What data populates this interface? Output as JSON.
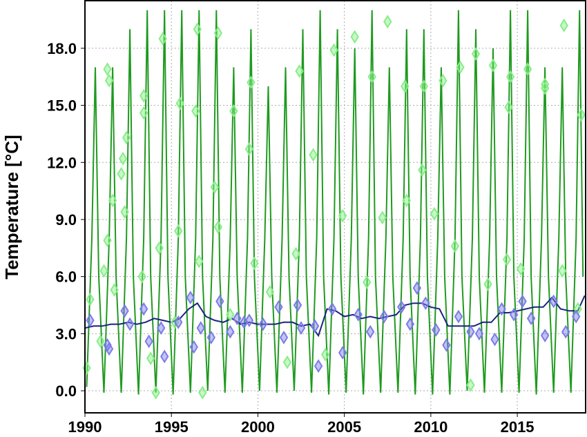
{
  "chart_data": {
    "type": "line",
    "y_label": "Temperature [°C]",
    "xlim": [
      1990,
      2018.95
    ],
    "ylim": [
      -1.16,
      20.5
    ],
    "xticks": [
      1990,
      1995,
      2000,
      2005,
      2010,
      2015
    ],
    "yticks": [
      {
        "value": 0,
        "label": "0.0"
      },
      {
        "value": 3,
        "label": "3.0"
      },
      {
        "value": 6,
        "label": "6.0"
      },
      {
        "value": 9,
        "label": "9.0"
      },
      {
        "value": 12,
        "label": "12.0"
      },
      {
        "value": 15,
        "label": "15.0"
      },
      {
        "value": 18,
        "label": "18.0"
      }
    ],
    "grid": true,
    "series": [
      {
        "type": "line",
        "color": "#1f9a1f",
        "x": [
          1990.1,
          1990.4,
          1990.6,
          1990.8,
          1991.1,
          1991.4,
          1991.6,
          1991.8,
          1992.1,
          1992.4,
          1992.6,
          1992.8,
          1993.1,
          1993.4,
          1993.6,
          1993.8,
          1994.1,
          1994.4,
          1994.6,
          1994.8,
          1995.1,
          1995.4,
          1995.6,
          1995.8,
          1996.1,
          1996.4,
          1996.6,
          1996.8,
          1997.1,
          1997.4,
          1997.6,
          1997.8,
          1998.1,
          1998.4,
          1998.6,
          1998.8,
          1999.1,
          1999.4,
          1999.6,
          1999.8,
          2000.1,
          2000.4,
          2000.6,
          2000.8,
          2001.1,
          2001.4,
          2001.6,
          2001.8,
          2002.1,
          2002.4,
          2002.6,
          2002.8,
          2003.1,
          2003.4,
          2003.6,
          2003.8,
          2004.1,
          2004.4,
          2004.6,
          2004.8,
          2005.1,
          2005.4,
          2005.6,
          2005.8,
          2006.1,
          2006.4,
          2006.6,
          2006.8,
          2007.1,
          2007.4,
          2007.6,
          2007.8,
          2008.1,
          2008.4,
          2008.6,
          2008.8,
          2009.1,
          2009.4,
          2009.6,
          2009.8,
          2010.1,
          2010.4,
          2010.6,
          2010.8,
          2011.1,
          2011.4,
          2011.6,
          2011.8,
          2012.1,
          2012.4,
          2012.6,
          2012.8,
          2013.1,
          2013.4,
          2013.6,
          2013.8,
          2014.1,
          2014.4,
          2014.6,
          2014.8,
          2015.1,
          2015.4,
          2015.6,
          2015.8,
          2016.1,
          2016.4,
          2016.6,
          2016.8,
          2017.1,
          2017.4,
          2017.6,
          2017.8,
          2018.1,
          2018.4,
          2018.6,
          2018.8
        ],
        "values": [
          0.2,
          8,
          17,
          6,
          -0.1,
          8,
          17,
          6,
          -0.1,
          8,
          19,
          6,
          -0.2,
          8,
          20,
          6,
          -0.1,
          8,
          20,
          6,
          -0.2,
          8,
          20,
          6,
          -0.1,
          8,
          20,
          6,
          0,
          8,
          20,
          6,
          -0.1,
          8,
          17,
          6,
          -0.1,
          8,
          19,
          6,
          0,
          8,
          16,
          6,
          -0.1,
          8,
          17,
          6,
          0,
          8,
          19,
          6,
          -0.1,
          8,
          20,
          6,
          -0.2,
          8,
          19,
          6,
          -0.1,
          8,
          18,
          6,
          -0.2,
          8,
          20,
          6,
          -0.1,
          8,
          17,
          6,
          -0.1,
          8,
          19,
          6,
          -0.2,
          8,
          19,
          6,
          -0.2,
          8,
          17,
          6,
          -0.2,
          8,
          20,
          6,
          0,
          8,
          19,
          6,
          -0.1,
          8,
          18,
          6,
          -0.1,
          8,
          20,
          6,
          -0.1,
          8,
          20,
          6,
          -0.2,
          8,
          17,
          6,
          -0.1,
          8,
          17,
          6,
          -0.1,
          8,
          20,
          6
        ]
      },
      {
        "type": "line",
        "color": "#1a237e",
        "x": [
          1990,
          1990.5,
          1991,
          1991.5,
          1992,
          1992.5,
          1993,
          1993.5,
          1994,
          1994.5,
          1995,
          1995.5,
          1996,
          1996.5,
          1997,
          1997.5,
          1998,
          1998.5,
          1999,
          1999.5,
          2000,
          2000.5,
          2001,
          2001.5,
          2002,
          2002.5,
          2003,
          2003.5,
          2004,
          2004.5,
          2005,
          2005.5,
          2006,
          2006.5,
          2007,
          2007.5,
          2008,
          2008.5,
          2009,
          2009.5,
          2010,
          2010.5,
          2011,
          2011.5,
          2012,
          2012.5,
          2013,
          2013.5,
          2014,
          2014.5,
          2015,
          2015.5,
          2016,
          2016.5,
          2017,
          2017.5,
          2018,
          2018.5,
          2018.9
        ],
        "values": [
          3.3,
          3.4,
          3.4,
          3.5,
          3.5,
          3.6,
          3.5,
          3.6,
          3.8,
          3.7,
          3.6,
          3.8,
          4.3,
          4.6,
          3.9,
          3.7,
          3.6,
          3.8,
          3.5,
          3.6,
          3.5,
          3.5,
          3.5,
          3.6,
          3.6,
          3.4,
          3.5,
          2.9,
          4.3,
          4.2,
          3.9,
          4,
          3.8,
          3.9,
          3.8,
          3.9,
          4,
          4.5,
          4.6,
          4.6,
          4.4,
          4.3,
          3.4,
          3.4,
          3.4,
          3.4,
          3.6,
          3.6,
          4.1,
          4.1,
          4.2,
          4.3,
          4.4,
          4.4,
          4.9,
          4.3,
          4.2,
          4.2,
          5
        ]
      },
      {
        "type": "scatter",
        "color": "#86ee86",
        "x": [
          1990.1,
          1990.3,
          1990.9,
          1991.3,
          1991.4,
          1991.3,
          1991.1,
          1991.6,
          1991.7,
          1992.2,
          1992.1,
          1992.3,
          1992.4,
          1993.4,
          1993.4,
          1993.3,
          1993.8,
          1994.1,
          1994.5,
          1994.3,
          1995.2,
          1995.5,
          1995.4,
          1996.5,
          1996.4,
          1996.6,
          1996.8,
          1997.7,
          1997.5,
          1997.7,
          1998.6,
          1998.4,
          1999.5,
          1999.6,
          1999.8,
          2000.7,
          2001.7,
          2002.4,
          2002.2,
          2003.2,
          2003.9,
          2004.4,
          2004.9,
          2005.6,
          2006.6,
          2006.3,
          2007.5,
          2007.2,
          2008.5,
          2008.6,
          2009.6,
          2009.5,
          2010.7,
          2010.2,
          2011.4,
          2011.7,
          2012.6,
          2012.3,
          2013.6,
          2013.3,
          2014.6,
          2014.5,
          2014.4,
          2015.6,
          2015.2,
          2016.6,
          2016.6,
          2017.7,
          2017.6,
          2018.7,
          2018.5
        ],
        "values": [
          1.2,
          4.8,
          2.6,
          16.9,
          16.3,
          7.9,
          6.3,
          10,
          5.3,
          12.2,
          11.4,
          9.4,
          13.3,
          15.5,
          14.6,
          6,
          1.7,
          -0.1,
          18.5,
          7.5,
          3.6,
          15.1,
          8.4,
          19,
          14.7,
          6.8,
          -0.1,
          18.8,
          10.7,
          8.6,
          14.7,
          4,
          12.7,
          16.2,
          6.7,
          5.2,
          1.5,
          16.8,
          7.2,
          12.4,
          1.9,
          17.9,
          9.2,
          18.6,
          16.5,
          5.7,
          19.4,
          9.1,
          16,
          10,
          16,
          11.6,
          16.3,
          9.3,
          7.6,
          17,
          17.7,
          0.3,
          17.1,
          5.6,
          16.5,
          14.9,
          6.9,
          16.9,
          6.4,
          16.1,
          15.9,
          19.2,
          6.3,
          14.5,
          4.3
        ]
      },
      {
        "type": "scatter",
        "color": "#7b7be8",
        "x": [
          1990.3,
          1991.3,
          1991.4,
          1992.3,
          1992.6,
          1993.4,
          1993.7,
          1994.4,
          1994.6,
          1995.4,
          1996.1,
          1996.3,
          1996.7,
          1997.3,
          1997.8,
          1998.4,
          1998.8,
          1999.2,
          1999.5,
          2000.3,
          2001.2,
          2001.5,
          2002.3,
          2002.5,
          2003.3,
          2003.5,
          2004.3,
          2004.9,
          2005.8,
          2006.5,
          2007.3,
          2008.3,
          2008.8,
          2009.2,
          2009.7,
          2010.3,
          2010.9,
          2011.6,
          2012.3,
          2012.8,
          2013.7,
          2014.1,
          2014.8,
          2015.3,
          2015.8,
          2016.6,
          2017.1,
          2017.8,
          2018.4
        ],
        "values": [
          3.7,
          2.4,
          2.2,
          4.2,
          3.5,
          4.3,
          2.6,
          3.3,
          1.8,
          3.6,
          4.9,
          2.3,
          3.3,
          2.8,
          4.7,
          3.1,
          3.8,
          3.6,
          3.7,
          3.5,
          4.4,
          2.8,
          4.5,
          3.3,
          3.4,
          1.3,
          4.3,
          2,
          4,
          3.1,
          3.9,
          4.4,
          3.5,
          5.4,
          4.6,
          3.2,
          2.4,
          3.9,
          3.1,
          3,
          2.7,
          4.3,
          4,
          4.7,
          3.8,
          2.9,
          4.7,
          3.1,
          3.9
        ]
      }
    ]
  }
}
